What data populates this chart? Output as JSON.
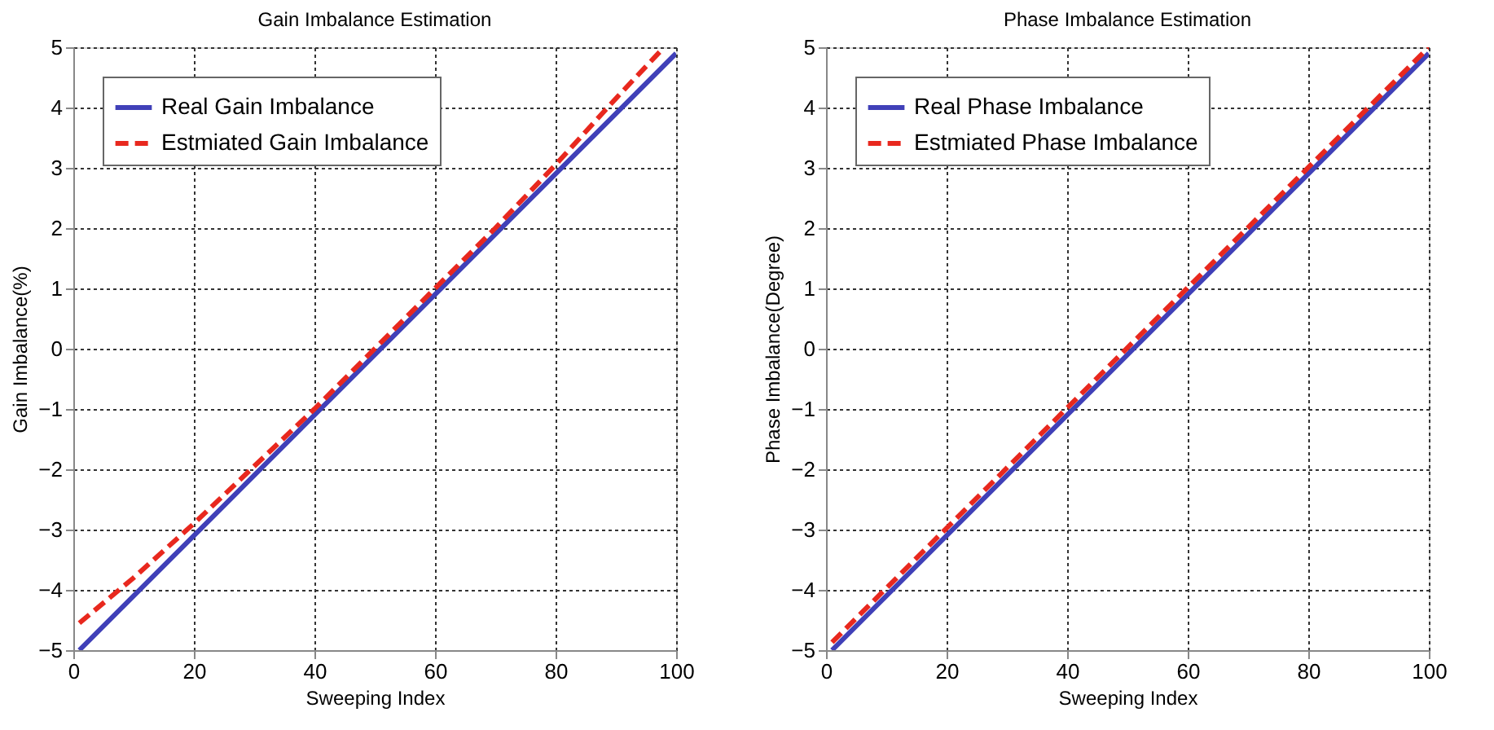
{
  "chart_data": [
    {
      "type": "line",
      "title": "Gain Imbalance Estimation",
      "xlabel": "Sweeping Index",
      "ylabel": "Gain Imbalance(%)",
      "xlim": [
        0,
        100
      ],
      "ylim": [
        -5,
        5
      ],
      "xticks": [
        0,
        20,
        40,
        60,
        80,
        100
      ],
      "yticks": [
        -5,
        -4,
        -3,
        -2,
        -1,
        0,
        1,
        2,
        3,
        4,
        5
      ],
      "grid": true,
      "legend": "top left",
      "series": [
        {
          "name": "Real Gain Imbalance",
          "color": "#4040b8",
          "line_style": "solid",
          "x": [
            1,
            100
          ],
          "values": [
            -5.0,
            4.9
          ]
        },
        {
          "name": "Estmiated Gain Imbalance",
          "color": "#e8281e",
          "line_style": "dashed",
          "x": [
            1,
            10,
            20,
            30,
            40,
            50,
            60,
            70,
            80,
            90,
            98
          ],
          "values": [
            -4.55,
            -3.8,
            -2.9,
            -1.95,
            -1.0,
            0.0,
            1.0,
            2.0,
            3.05,
            4.15,
            5.0
          ]
        }
      ]
    },
    {
      "type": "line",
      "title": "Phase Imbalance Estimation",
      "xlabel": "Sweeping Index",
      "ylabel": "Phase Imbalance(Degree)",
      "xlim": [
        0,
        100
      ],
      "ylim": [
        -5,
        5
      ],
      "xticks": [
        0,
        20,
        40,
        60,
        80,
        100
      ],
      "yticks": [
        -5,
        -4,
        -3,
        -2,
        -1,
        0,
        1,
        2,
        3,
        4,
        5
      ],
      "grid": true,
      "legend": "top left",
      "series": [
        {
          "name": "Real Phase Imbalance",
          "color": "#4040b8",
          "line_style": "solid",
          "x": [
            1,
            100
          ],
          "values": [
            -5.0,
            4.9
          ]
        },
        {
          "name": "Estmiated Phase Imbalance",
          "color": "#e8281e",
          "line_style": "dashed",
          "x": [
            1,
            100
          ],
          "values": [
            -4.87,
            5.0
          ]
        }
      ]
    }
  ]
}
